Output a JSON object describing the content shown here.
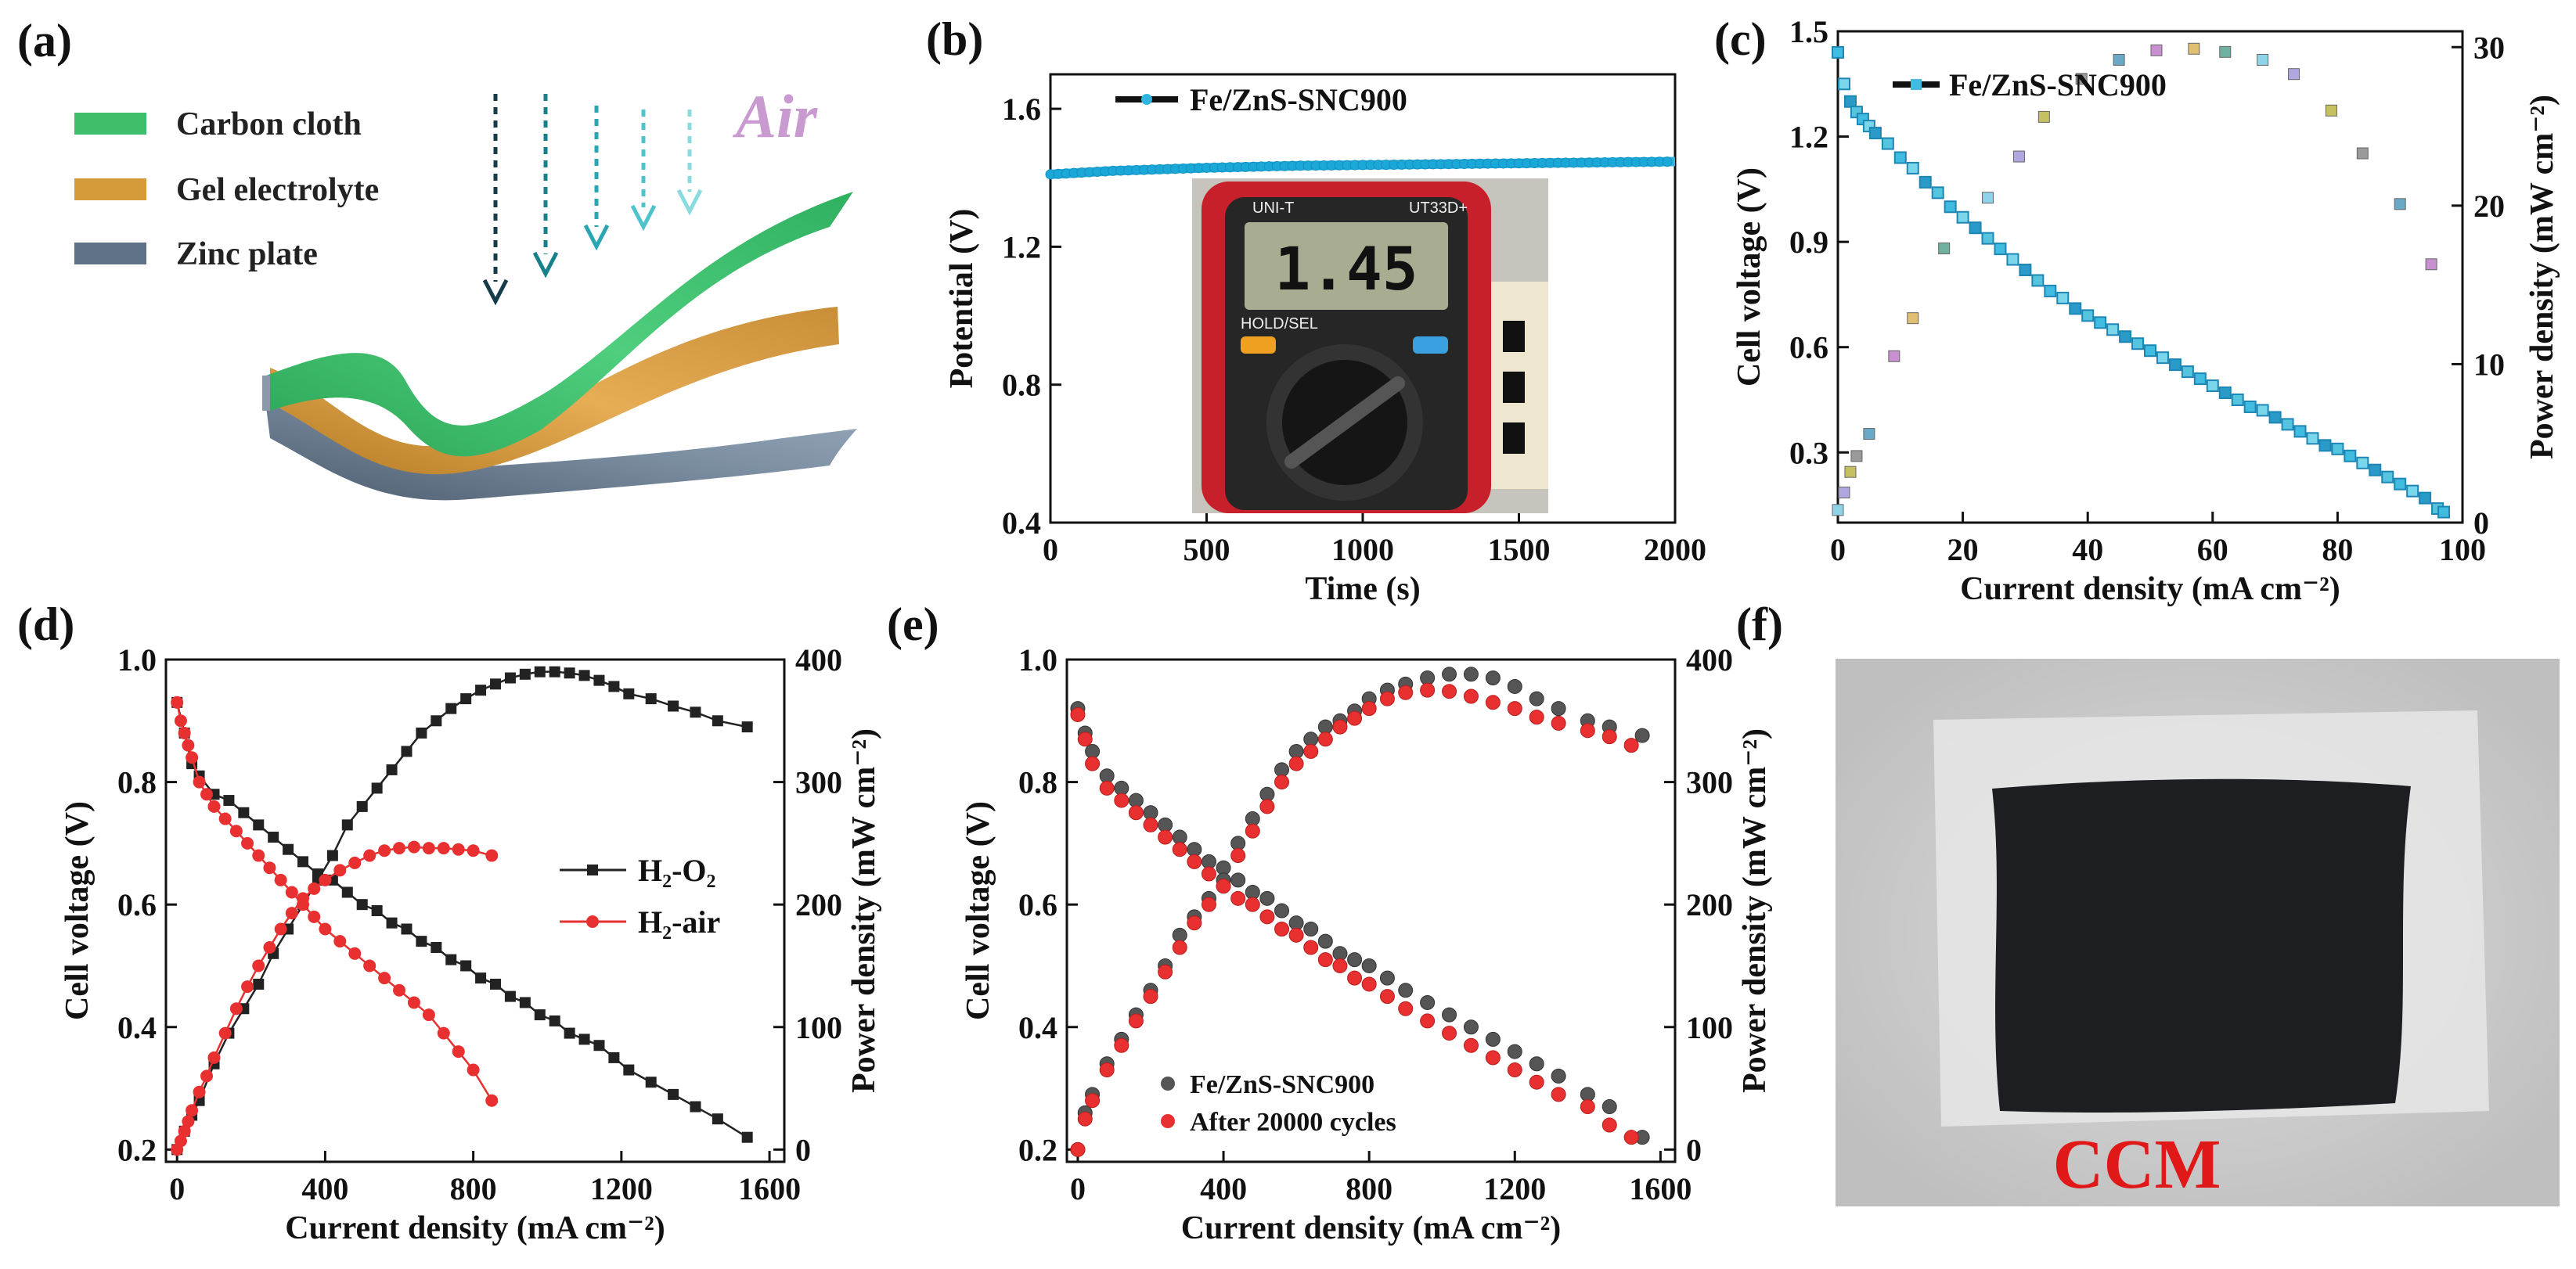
{
  "panel_labels": {
    "a": "(a)",
    "b": "(b)",
    "c": "(c)",
    "d": "(d)",
    "e": "(e)",
    "f": "(f)"
  },
  "panel_a": {
    "layers": [
      "Carbon cloth",
      "Gel electrolyte",
      "Zinc plate"
    ],
    "air_label": "Air",
    "colors": {
      "carbon": "#3fbe6c",
      "gel": "#d59a3a",
      "zinc": "#5f7186",
      "air_text": "#c89ad0"
    }
  },
  "panel_f": {
    "label": "CCM",
    "label_color": "#e01818"
  },
  "multimeter": {
    "display": "1.45",
    "brand": "UNI-T",
    "model": "UT33D+",
    "hold": "HOLD/SEL"
  },
  "chart_data": [
    {
      "id": "b",
      "type": "line",
      "xlabel": "Time (s)",
      "ylabel": "Potential (V)",
      "xlim": [
        0,
        2000
      ],
      "ylim": [
        0.4,
        1.7
      ],
      "xticks": [
        0,
        500,
        1000,
        1500,
        2000
      ],
      "yticks": [
        0.4,
        0.8,
        1.2,
        1.6
      ],
      "yticklabels": [
        "0.4",
        "0.8",
        "1.2",
        "1.6"
      ],
      "series": [
        {
          "name": "Fe/ZnS-SNC900",
          "color": "#30b4e0",
          "x": [
            0,
            100,
            200,
            300,
            400,
            500,
            600,
            700,
            800,
            900,
            1000,
            1100,
            1200,
            1300,
            1400,
            1500,
            1600,
            1700,
            1800,
            1900,
            2000
          ],
          "y": [
            1.41,
            1.415,
            1.42,
            1.423,
            1.426,
            1.429,
            1.431,
            1.433,
            1.435,
            1.436,
            1.437,
            1.438,
            1.439,
            1.44,
            1.441,
            1.442,
            1.443,
            1.444,
            1.445,
            1.446,
            1.447
          ]
        }
      ]
    },
    {
      "id": "c",
      "type": "scatter",
      "xlabel": "Current density (mA cm⁻²)",
      "ylabel": "Cell voltage (V)",
      "y2label": "Power density (mW cm⁻²)",
      "xlim": [
        0,
        100
      ],
      "ylim": [
        0.1,
        1.5
      ],
      "y2lim": [
        0,
        31
      ],
      "xticks": [
        0,
        20,
        40,
        60,
        80,
        100
      ],
      "yticks": [
        0.3,
        0.6,
        0.9,
        1.2,
        1.5
      ],
      "yticklabels": [
        "0.3",
        "0.6",
        "0.9",
        "1.2",
        "1.5"
      ],
      "y2ticks": [
        0,
        10,
        20,
        30
      ],
      "legend": "Fe/ZnS-SNC900",
      "series": [
        {
          "name": "Cell voltage",
          "x": [
            0,
            1,
            2,
            3,
            4,
            5,
            6,
            8,
            10,
            12,
            14,
            16,
            18,
            20,
            22,
            24,
            26,
            28,
            30,
            32,
            34,
            36,
            38,
            40,
            42,
            44,
            46,
            48,
            50,
            52,
            54,
            56,
            58,
            60,
            62,
            64,
            66,
            68,
            70,
            72,
            74,
            76,
            78,
            80,
            82,
            84,
            86,
            88,
            90,
            92,
            94,
            96,
            97
          ],
          "y": [
            1.44,
            1.35,
            1.3,
            1.27,
            1.25,
            1.23,
            1.21,
            1.18,
            1.14,
            1.11,
            1.07,
            1.04,
            1.0,
            0.97,
            0.94,
            0.91,
            0.88,
            0.85,
            0.82,
            0.79,
            0.76,
            0.74,
            0.71,
            0.69,
            0.67,
            0.65,
            0.63,
            0.61,
            0.59,
            0.57,
            0.55,
            0.53,
            0.51,
            0.49,
            0.47,
            0.45,
            0.43,
            0.42,
            0.4,
            0.38,
            0.36,
            0.34,
            0.32,
            0.31,
            0.29,
            0.27,
            0.25,
            0.23,
            0.21,
            0.19,
            0.17,
            0.14,
            0.13
          ]
        },
        {
          "name": "Power density",
          "x": [
            0,
            1,
            2,
            3,
            5,
            9,
            12,
            17,
            24,
            29,
            33,
            39,
            45,
            51,
            57,
            62,
            68,
            73,
            79,
            84,
            90,
            95
          ],
          "y": [
            0.8,
            1.9,
            3.2,
            4.2,
            5.6,
            10.5,
            12.9,
            17.3,
            20.5,
            23.1,
            25.6,
            28,
            29.2,
            29.8,
            29.9,
            29.7,
            29.2,
            28.3,
            26,
            23.3,
            20.1,
            16.3
          ]
        }
      ]
    },
    {
      "id": "d",
      "type": "line",
      "xlabel": "Current density (mA cm⁻²)",
      "ylabel": "Cell voltage (V)",
      "y2label": "Power density (mW cm⁻²)",
      "xlim": [
        -30,
        1640
      ],
      "ylim": [
        0.18,
        1.0
      ],
      "y2lim": [
        -10,
        400
      ],
      "xticks": [
        0,
        400,
        800,
        1200,
        1600
      ],
      "yticks": [
        0.2,
        0.4,
        0.6,
        0.8,
        1.0
      ],
      "yticklabels": [
        "0.2",
        "0.4",
        "0.6",
        "0.8",
        "1.0"
      ],
      "y2ticks": [
        0,
        100,
        200,
        300,
        400
      ],
      "series": [
        {
          "name": "H₂-O₂",
          "color": "#222",
          "marker": "square",
          "voltage_x": [
            0,
            20,
            40,
            60,
            100,
            140,
            180,
            220,
            260,
            300,
            340,
            380,
            420,
            460,
            500,
            540,
            580,
            620,
            660,
            700,
            740,
            780,
            820,
            860,
            900,
            940,
            980,
            1020,
            1060,
            1100,
            1140,
            1180,
            1220,
            1280,
            1340,
            1400,
            1460,
            1540
          ],
          "voltage_y": [
            0.93,
            0.88,
            0.83,
            0.81,
            0.78,
            0.77,
            0.75,
            0.73,
            0.71,
            0.69,
            0.67,
            0.65,
            0.64,
            0.62,
            0.6,
            0.59,
            0.57,
            0.56,
            0.54,
            0.53,
            0.51,
            0.5,
            0.48,
            0.47,
            0.45,
            0.44,
            0.42,
            0.41,
            0.39,
            0.38,
            0.37,
            0.35,
            0.33,
            0.31,
            0.29,
            0.27,
            0.25,
            0.22
          ],
          "power_x": [
            0,
            20,
            40,
            60,
            100,
            140,
            180,
            220,
            260,
            300,
            340,
            380,
            420,
            460,
            500,
            540,
            580,
            620,
            660,
            700,
            740,
            780,
            820,
            860,
            900,
            940,
            980,
            1020,
            1060,
            1100,
            1140,
            1180,
            1220,
            1280,
            1340,
            1400,
            1460,
            1540
          ],
          "power_y": [
            0,
            15,
            28,
            40,
            70,
            95,
            115,
            135,
            160,
            180,
            200,
            220,
            240,
            265,
            280,
            295,
            310,
            325,
            340,
            350,
            360,
            368,
            375,
            380,
            385,
            388,
            390,
            390,
            389,
            387,
            383,
            378,
            372,
            368,
            362,
            357,
            350,
            345
          ]
        },
        {
          "name": "H₂-air",
          "color": "#e83030",
          "marker": "circle",
          "voltage_x": [
            0,
            10,
            20,
            30,
            40,
            60,
            80,
            100,
            130,
            160,
            190,
            220,
            250,
            280,
            310,
            340,
            370,
            400,
            440,
            480,
            520,
            560,
            600,
            640,
            680,
            720,
            760,
            800,
            850
          ],
          "voltage_y": [
            0.93,
            0.9,
            0.88,
            0.86,
            0.84,
            0.8,
            0.78,
            0.76,
            0.74,
            0.72,
            0.7,
            0.68,
            0.66,
            0.64,
            0.62,
            0.6,
            0.58,
            0.56,
            0.54,
            0.52,
            0.5,
            0.48,
            0.46,
            0.44,
            0.42,
            0.39,
            0.36,
            0.33,
            0.28
          ],
          "power_x": [
            0,
            10,
            20,
            30,
            40,
            60,
            80,
            100,
            130,
            160,
            190,
            220,
            250,
            280,
            310,
            340,
            370,
            400,
            440,
            480,
            520,
            560,
            600,
            640,
            680,
            720,
            760,
            800,
            850
          ],
          "power_y": [
            0,
            7,
            15,
            23,
            32,
            47,
            60,
            75,
            95,
            115,
            133,
            150,
            165,
            180,
            193,
            205,
            213,
            220,
            228,
            234,
            240,
            244,
            246,
            247,
            246,
            246,
            245,
            244,
            240
          ]
        }
      ]
    },
    {
      "id": "e",
      "type": "scatter",
      "xlabel": "Current density (mA cm⁻²)",
      "ylabel": "Cell voltage (V)",
      "y2label": "Power density (mW cm⁻²)",
      "xlim": [
        -30,
        1640
      ],
      "ylim": [
        0.18,
        1.0
      ],
      "y2lim": [
        -10,
        400
      ],
      "xticks": [
        0,
        400,
        800,
        1200,
        1600
      ],
      "yticks": [
        0.2,
        0.4,
        0.6,
        0.8,
        1.0
      ],
      "yticklabels": [
        "0.2",
        "0.4",
        "0.6",
        "0.8",
        "1.0"
      ],
      "y2ticks": [
        0,
        100,
        200,
        300,
        400
      ],
      "series": [
        {
          "name": "Fe/ZnS-SNC900",
          "color": "#555",
          "voltage_x": [
            0,
            20,
            40,
            80,
            120,
            160,
            200,
            240,
            280,
            320,
            360,
            400,
            440,
            480,
            520,
            560,
            600,
            640,
            680,
            720,
            760,
            800,
            850,
            900,
            960,
            1020,
            1080,
            1140,
            1200,
            1260,
            1320,
            1400,
            1460,
            1550
          ],
          "voltage_y": [
            0.92,
            0.88,
            0.85,
            0.81,
            0.79,
            0.77,
            0.75,
            0.73,
            0.71,
            0.69,
            0.67,
            0.66,
            0.64,
            0.62,
            0.61,
            0.59,
            0.57,
            0.56,
            0.54,
            0.52,
            0.51,
            0.5,
            0.48,
            0.46,
            0.44,
            0.42,
            0.4,
            0.38,
            0.36,
            0.34,
            0.32,
            0.29,
            0.27,
            0.22
          ],
          "power_x": [
            0,
            20,
            40,
            80,
            120,
            160,
            200,
            240,
            280,
            320,
            360,
            400,
            440,
            480,
            520,
            560,
            600,
            640,
            680,
            720,
            760,
            800,
            850,
            900,
            960,
            1020,
            1080,
            1140,
            1200,
            1260,
            1320,
            1400,
            1460,
            1550
          ],
          "power_y": [
            0,
            30,
            45,
            70,
            90,
            110,
            130,
            150,
            175,
            190,
            205,
            220,
            250,
            270,
            290,
            310,
            325,
            335,
            345,
            350,
            358,
            368,
            375,
            380,
            385,
            388,
            388,
            385,
            378,
            368,
            360,
            350,
            345,
            338
          ]
        },
        {
          "name": "After 20000 cycles",
          "color": "#e83030",
          "voltage_x": [
            0,
            20,
            40,
            80,
            120,
            160,
            200,
            240,
            280,
            320,
            360,
            400,
            440,
            480,
            520,
            560,
            600,
            640,
            680,
            720,
            760,
            800,
            850,
            900,
            960,
            1020,
            1080,
            1140,
            1200,
            1260,
            1320,
            1400,
            1460,
            1520
          ],
          "voltage_y": [
            0.91,
            0.87,
            0.83,
            0.79,
            0.77,
            0.75,
            0.73,
            0.71,
            0.69,
            0.67,
            0.65,
            0.63,
            0.61,
            0.6,
            0.58,
            0.56,
            0.55,
            0.53,
            0.51,
            0.5,
            0.48,
            0.47,
            0.45,
            0.43,
            0.41,
            0.39,
            0.37,
            0.35,
            0.33,
            0.31,
            0.29,
            0.27,
            0.24,
            0.22
          ],
          "power_x": [
            0,
            20,
            40,
            80,
            120,
            160,
            200,
            240,
            280,
            320,
            360,
            400,
            440,
            480,
            520,
            560,
            600,
            640,
            680,
            720,
            760,
            800,
            850,
            900,
            960,
            1020,
            1080,
            1140,
            1200,
            1260,
            1320,
            1400,
            1460,
            1520
          ],
          "power_y": [
            0,
            25,
            40,
            65,
            85,
            105,
            125,
            145,
            165,
            185,
            200,
            215,
            240,
            260,
            280,
            300,
            315,
            325,
            335,
            345,
            352,
            360,
            368,
            373,
            375,
            374,
            370,
            365,
            360,
            353,
            348,
            342,
            337,
            330
          ]
        }
      ]
    }
  ]
}
